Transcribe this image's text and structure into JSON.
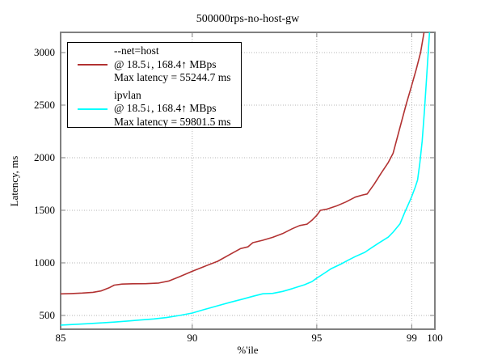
{
  "page": {
    "title": "500000rps-no-host-gw"
  },
  "axes": {
    "x": {
      "label": "%'ile"
    },
    "y": {
      "label": "Latency, ms"
    }
  },
  "legend": {
    "entries": [
      {
        "name": "--net=host",
        "throughput": "@ 18.5↓, 168.4↑ MBps",
        "max_latency": "Max latency = 55244.7 ms",
        "color": "#b23232"
      },
      {
        "name": "ipvlan",
        "throughput": "@ 18.5↓, 168.4↑ MBps",
        "max_latency": "Max latency = 59801.5 ms",
        "color": "#00ffff"
      }
    ]
  },
  "colors": {
    "frame": "#808080",
    "grid": "#b4b4b4",
    "background": "#ffffff",
    "text": "#000000"
  },
  "chart_data": {
    "type": "line",
    "title": "500000rps-no-host-gw",
    "xlabel": "%'ile",
    "ylabel": "Latency, ms",
    "x_scale": "log",
    "xlim": [
      85,
      100
    ],
    "ylim": [
      369,
      3192
    ],
    "x_ticks": [
      85,
      90,
      95,
      99,
      100
    ],
    "y_ticks": [
      500,
      1000,
      1500,
      2000,
      2500,
      3000
    ],
    "grid": true,
    "legend_position": "top-left",
    "series": [
      {
        "name": "--net=host",
        "color": "#b23232",
        "points": [
          [
            85,
            705
          ],
          [
            85.4,
            708
          ],
          [
            85.8,
            713
          ],
          [
            86.2,
            720
          ],
          [
            86.5,
            733
          ],
          [
            86.8,
            762
          ],
          [
            87,
            788
          ],
          [
            87.3,
            798
          ],
          [
            87.7,
            801
          ],
          [
            88.2,
            802
          ],
          [
            88.7,
            808
          ],
          [
            89.1,
            828
          ],
          [
            89.5,
            868
          ],
          [
            90,
            920
          ],
          [
            90.5,
            968
          ],
          [
            91,
            1015
          ],
          [
            91.5,
            1082
          ],
          [
            91.9,
            1135
          ],
          [
            92.2,
            1152
          ],
          [
            92.4,
            1192
          ],
          [
            92.8,
            1215
          ],
          [
            93.2,
            1243
          ],
          [
            93.6,
            1278
          ],
          [
            94,
            1325
          ],
          [
            94.3,
            1355
          ],
          [
            94.6,
            1368
          ],
          [
            94.8,
            1405
          ],
          [
            95,
            1452
          ],
          [
            95.15,
            1500
          ],
          [
            95.4,
            1510
          ],
          [
            95.8,
            1540
          ],
          [
            96.2,
            1578
          ],
          [
            96.6,
            1625
          ],
          [
            96.9,
            1645
          ],
          [
            97.1,
            1655
          ],
          [
            97.4,
            1748
          ],
          [
            97.7,
            1855
          ],
          [
            98,
            1955
          ],
          [
            98.2,
            2042
          ],
          [
            98.45,
            2250
          ],
          [
            98.75,
            2500
          ],
          [
            99,
            2690
          ],
          [
            99.2,
            2845
          ],
          [
            99.38,
            3000
          ],
          [
            99.56,
            3230
          ]
        ]
      },
      {
        "name": "ipvlan",
        "color": "#00ffff",
        "points": [
          [
            85,
            408
          ],
          [
            85.5,
            414
          ],
          [
            86,
            421
          ],
          [
            86.5,
            429
          ],
          [
            87,
            437
          ],
          [
            87.5,
            447
          ],
          [
            88,
            457
          ],
          [
            88.5,
            467
          ],
          [
            89,
            480
          ],
          [
            89.5,
            500
          ],
          [
            90,
            523
          ],
          [
            90.5,
            558
          ],
          [
            91,
            592
          ],
          [
            91.5,
            625
          ],
          [
            92,
            656
          ],
          [
            92.4,
            682
          ],
          [
            92.8,
            706
          ],
          [
            93.2,
            710
          ],
          [
            93.6,
            728
          ],
          [
            94,
            755
          ],
          [
            94.5,
            792
          ],
          [
            94.8,
            822
          ],
          [
            95,
            855
          ],
          [
            95.3,
            900
          ],
          [
            95.6,
            945
          ],
          [
            96,
            988
          ],
          [
            96.3,
            1025
          ],
          [
            96.6,
            1060
          ],
          [
            97,
            1100
          ],
          [
            97.3,
            1145
          ],
          [
            97.6,
            1190
          ],
          [
            98,
            1245
          ],
          [
            98.2,
            1292
          ],
          [
            98.5,
            1372
          ],
          [
            98.7,
            1480
          ],
          [
            98.9,
            1580
          ],
          [
            99,
            1632
          ],
          [
            99.15,
            1720
          ],
          [
            99.25,
            1788
          ],
          [
            99.35,
            1950
          ],
          [
            99.45,
            2160
          ],
          [
            99.55,
            2460
          ],
          [
            99.63,
            2720
          ],
          [
            99.7,
            2960
          ],
          [
            99.78,
            3230
          ]
        ]
      }
    ]
  }
}
